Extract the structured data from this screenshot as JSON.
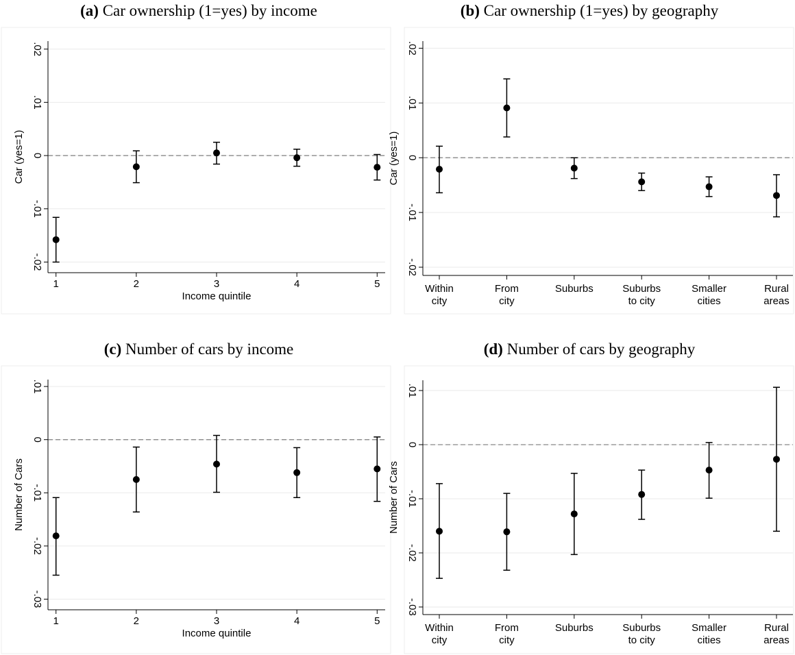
{
  "chart_data": [
    {
      "type": "errorbar",
      "panel": "(a)",
      "title": "Car ownership (1=yes) by income",
      "xlabel": "Income quintile",
      "ylabel": "Car (yes=1)",
      "x": [
        1,
        2,
        3,
        4,
        5
      ],
      "xlim": [
        0.9,
        5.1
      ],
      "xticks": [
        1,
        2,
        3,
        4,
        5
      ],
      "ylim": [
        -0.022,
        0.0215
      ],
      "yticks": [
        {
          "value": -0.02,
          "label": "-.02"
        },
        {
          "value": -0.01,
          "label": "-.01"
        },
        0,
        {
          "value": 0.01,
          "label": ".01"
        },
        {
          "value": 0.02,
          "label": ".02"
        }
      ],
      "yline": 0,
      "grid": true,
      "series": [
        {
          "color": "#000000",
          "values": [
            -0.0158,
            -0.0021,
            0.0005,
            -0.0004,
            -0.0022
          ],
          "lower": [
            -0.02,
            -0.0051,
            -0.0016,
            -0.002,
            -0.0046
          ],
          "upper": [
            -0.0116,
            0.0009,
            0.0025,
            0.0012,
            0.0002
          ]
        }
      ]
    },
    {
      "type": "errorbar",
      "panel": "(b)",
      "title": "Car ownership (1=yes) by geography",
      "ylabel": "Car (yes=1)",
      "categories": [
        "Within city",
        "From city",
        "Suburbs",
        "Suburbs to city",
        "Smaller cities",
        "Rural areas"
      ],
      "ylim": [
        -0.0215,
        0.0213
      ],
      "yticks": [
        {
          "value": -0.02,
          "label": "-.02"
        },
        {
          "value": -0.01,
          "label": "-.01"
        },
        0,
        {
          "value": 0.01,
          "label": ".01"
        },
        {
          "value": 0.02,
          "label": ".02"
        }
      ],
      "yline": 0,
      "grid": true,
      "series": [
        {
          "color": "#000000",
          "values": [
            -0.0021,
            0.0091,
            -0.0019,
            -0.0044,
            -0.0053,
            -0.0069
          ],
          "lower": [
            -0.0064,
            0.0038,
            -0.0038,
            -0.006,
            -0.0071,
            -0.0108
          ],
          "upper": [
            0.0021,
            0.0144,
            0,
            -0.0028,
            -0.0035,
            -0.0031
          ]
        }
      ]
    },
    {
      "type": "errorbar",
      "panel": "(c)",
      "title": "Number of cars by income",
      "xlabel": "Income quintile",
      "ylabel": "Number of Cars",
      "x": [
        1,
        2,
        3,
        4,
        5
      ],
      "xlim": [
        0.9,
        5.1
      ],
      "xticks": [
        1,
        2,
        3,
        4,
        5
      ],
      "ylim": [
        -0.032,
        0.0113
      ],
      "yticks": [
        {
          "value": -0.03,
          "label": "-.03"
        },
        {
          "value": -0.02,
          "label": "-.02"
        },
        {
          "value": -0.01,
          "label": "-.01"
        },
        0,
        {
          "value": 0.01,
          "label": ".01"
        }
      ],
      "yline": 0,
      "grid": true,
      "series": [
        {
          "color": "#000000",
          "values": [
            -0.0181,
            -0.0075,
            -0.0046,
            -0.0062,
            -0.0055
          ],
          "lower": [
            -0.0255,
            -0.0136,
            -0.0099,
            -0.0109,
            -0.0116
          ],
          "upper": [
            -0.0109,
            -0.0014,
            0.0008,
            -0.0015,
            0.0005
          ]
        }
      ]
    },
    {
      "type": "errorbar",
      "panel": "(d)",
      "title": "Number of cars by geography",
      "ylabel": "Number of Cars",
      "categories": [
        "Within city",
        "From city",
        "Suburbs",
        "Suburbs to city",
        "Smaller cities",
        "Rural areas"
      ],
      "ylim": [
        -0.0314,
        0.0119
      ],
      "yticks": [
        {
          "value": -0.03,
          "label": "-.03"
        },
        {
          "value": -0.02,
          "label": "-.02"
        },
        {
          "value": -0.01,
          "label": "-.01"
        },
        0,
        {
          "value": 0.01,
          "label": ".01"
        }
      ],
      "yline": 0,
      "grid": true,
      "series": [
        {
          "color": "#000000",
          "values": [
            -0.016,
            -0.0161,
            -0.0128,
            -0.0092,
            -0.0047,
            -0.0027
          ],
          "lower": [
            -0.0247,
            -0.0232,
            -0.0203,
            -0.0138,
            -0.0099,
            -0.016
          ],
          "upper": [
            -0.0072,
            -0.009,
            -0.0053,
            -0.0047,
            0.0004,
            0.0106
          ]
        }
      ]
    }
  ]
}
